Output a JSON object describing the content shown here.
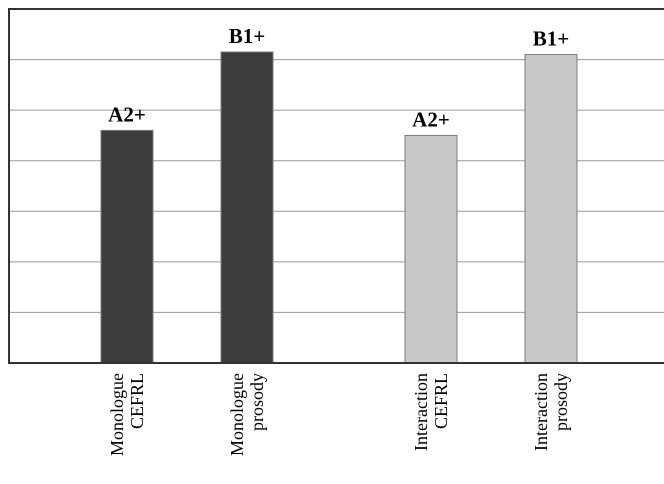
{
  "chart_data": {
    "type": "bar",
    "title": "",
    "xlabel": "",
    "ylabel": "",
    "grid": true,
    "ylim": [
      0,
      7
    ],
    "categories": [
      [
        "Monologue",
        "CEFRL"
      ],
      [
        "Monologue",
        "prosody"
      ],
      [
        "Interaction",
        "CEFRL"
      ],
      [
        "Interaction",
        "prosody"
      ]
    ],
    "values": [
      4.6,
      6.15,
      4.5,
      6.1
    ],
    "data_labels": [
      "A2+",
      "B1+",
      "A2+",
      "B1+"
    ],
    "colors": [
      "#3c3c3c",
      "#3c3c3c",
      "#c8c8c8",
      "#c8c8c8"
    ],
    "bar_edge_color": "#7a7a7a",
    "axis_color": "#333333",
    "grid_color": "#9a9a9a"
  }
}
